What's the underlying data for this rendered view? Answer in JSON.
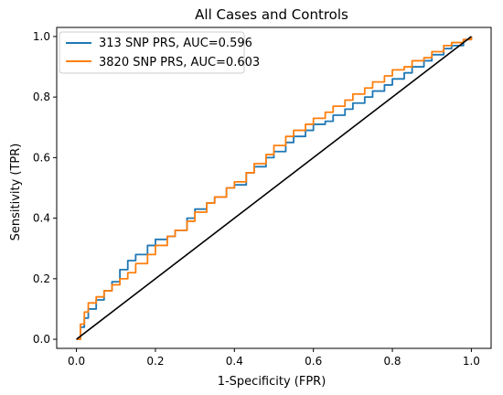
{
  "chart_data": {
    "type": "line",
    "title": "All Cases and Controls",
    "xlabel": "1-Specificity (FPR)",
    "ylabel": "Sensitivity (TPR)",
    "xlim": [
      -0.05,
      1.05
    ],
    "ylim": [
      -0.03,
      1.03
    ],
    "xticks": [
      0.0,
      0.2,
      0.4,
      0.6,
      0.8,
      1.0
    ],
    "yticks": [
      0.0,
      0.2,
      0.4,
      0.6,
      0.8,
      1.0
    ],
    "xtick_labels": [
      "0.0",
      "0.2",
      "0.4",
      "0.6",
      "0.8",
      "1.0"
    ],
    "ytick_labels": [
      "0.0",
      "0.2",
      "0.4",
      "0.6",
      "0.8",
      "1.0"
    ],
    "grid": false,
    "legend_position": "upper-left",
    "series": [
      {
        "name": "313 SNP PRS, AUC=0.596",
        "color": "#1f77b4",
        "x": [
          0.0,
          0.01,
          0.02,
          0.03,
          0.05,
          0.07,
          0.09,
          0.11,
          0.13,
          0.15,
          0.18,
          0.2,
          0.23,
          0.25,
          0.28,
          0.3,
          0.33,
          0.35,
          0.38,
          0.4,
          0.43,
          0.45,
          0.48,
          0.5,
          0.53,
          0.55,
          0.58,
          0.6,
          0.63,
          0.65,
          0.68,
          0.7,
          0.73,
          0.75,
          0.78,
          0.8,
          0.83,
          0.85,
          0.88,
          0.9,
          0.93,
          0.95,
          0.98,
          1.0
        ],
        "y": [
          0.0,
          0.04,
          0.07,
          0.1,
          0.13,
          0.16,
          0.19,
          0.23,
          0.26,
          0.28,
          0.31,
          0.33,
          0.34,
          0.36,
          0.4,
          0.43,
          0.45,
          0.47,
          0.5,
          0.51,
          0.55,
          0.57,
          0.6,
          0.62,
          0.65,
          0.67,
          0.69,
          0.71,
          0.72,
          0.74,
          0.76,
          0.78,
          0.8,
          0.82,
          0.84,
          0.86,
          0.88,
          0.9,
          0.92,
          0.94,
          0.96,
          0.97,
          0.99,
          1.0
        ]
      },
      {
        "name": "3820 SNP PRS, AUC=0.603",
        "color": "#ff7f0e",
        "x": [
          0.0,
          0.01,
          0.02,
          0.03,
          0.05,
          0.07,
          0.09,
          0.11,
          0.13,
          0.15,
          0.18,
          0.2,
          0.23,
          0.25,
          0.28,
          0.3,
          0.33,
          0.35,
          0.38,
          0.4,
          0.43,
          0.45,
          0.48,
          0.5,
          0.53,
          0.55,
          0.58,
          0.6,
          0.63,
          0.65,
          0.68,
          0.7,
          0.73,
          0.75,
          0.78,
          0.8,
          0.83,
          0.85,
          0.88,
          0.9,
          0.93,
          0.95,
          0.98,
          1.0
        ],
        "y": [
          0.0,
          0.05,
          0.09,
          0.12,
          0.14,
          0.16,
          0.18,
          0.2,
          0.22,
          0.25,
          0.28,
          0.31,
          0.34,
          0.36,
          0.39,
          0.42,
          0.45,
          0.47,
          0.5,
          0.52,
          0.55,
          0.58,
          0.61,
          0.64,
          0.67,
          0.69,
          0.71,
          0.73,
          0.75,
          0.77,
          0.79,
          0.81,
          0.83,
          0.85,
          0.87,
          0.89,
          0.9,
          0.92,
          0.93,
          0.95,
          0.97,
          0.98,
          0.99,
          1.0
        ]
      },
      {
        "color": "#000000",
        "x": [
          0.0,
          1.0
        ],
        "y": [
          0.0,
          1.0
        ]
      }
    ]
  }
}
